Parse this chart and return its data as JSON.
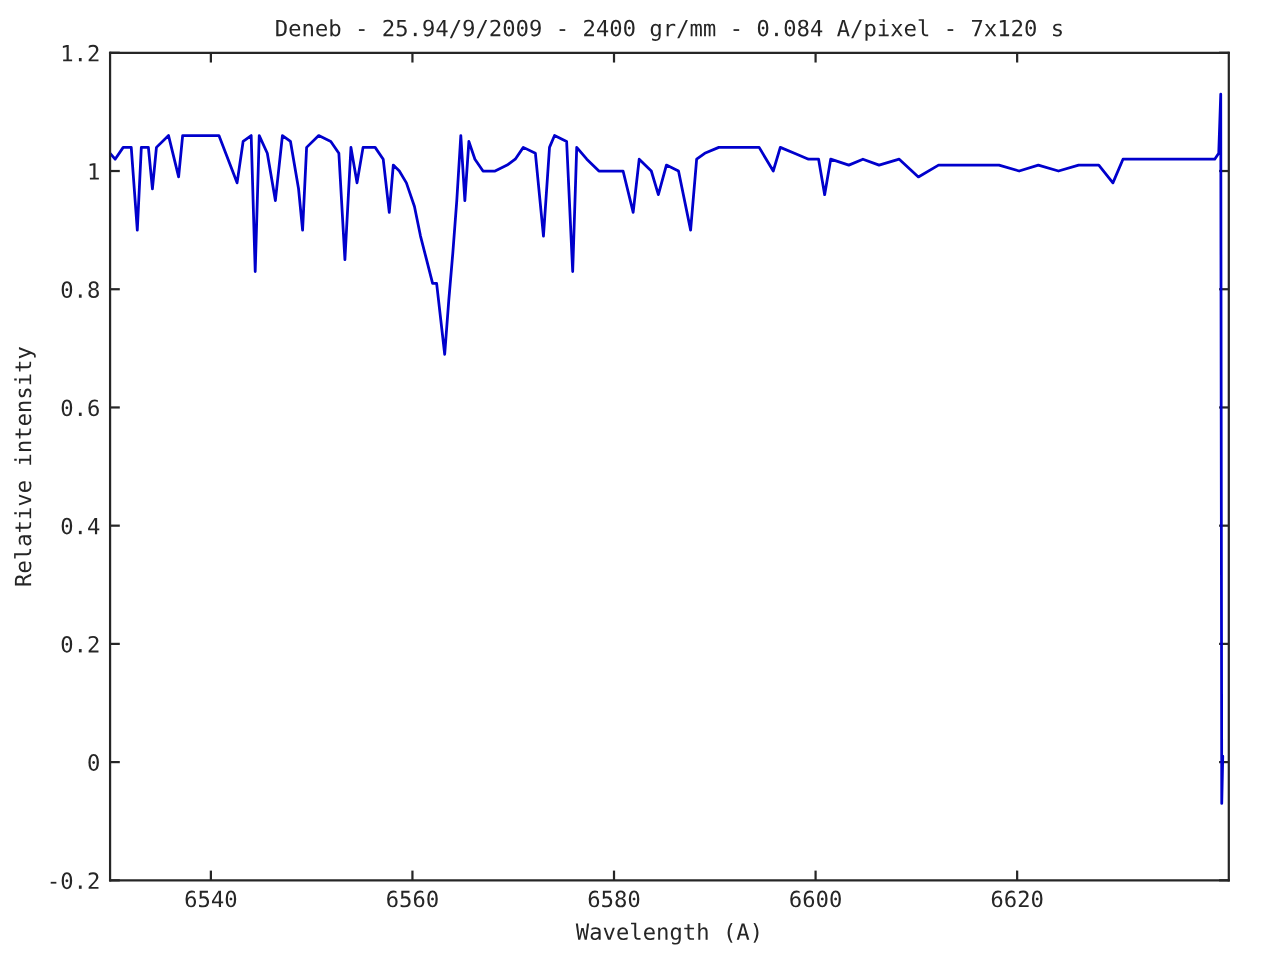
{
  "chart_data": {
    "type": "line",
    "title": "Deneb - 25.94/9/2009 - 2400 gr/mm - 0.084 A/pixel - 7x120 s",
    "xlabel": "Wavelength (A)",
    "ylabel": "Relative intensity",
    "x": [
      6530.0,
      6530.5,
      6531.3,
      6532.1,
      6532.7,
      6533.1,
      6533.8,
      6534.2,
      6534.6,
      6535.8,
      6536.8,
      6537.2,
      6538.8,
      6540.8,
      6542.6,
      6543.2,
      6544.0,
      6544.4,
      6544.8,
      6545.6,
      6546.4,
      6547.1,
      6547.9,
      6548.7,
      6549.1,
      6549.5,
      6550.7,
      6551.9,
      6552.7,
      6553.3,
      6553.9,
      6554.5,
      6555.1,
      6556.3,
      6557.1,
      6557.7,
      6558.1,
      6558.7,
      6559.4,
      6560.2,
      6560.8,
      6561.4,
      6562.0,
      6562.4,
      6562.8,
      6563.2,
      6563.6,
      6564.0,
      6564.4,
      6564.8,
      6565.2,
      6565.6,
      6566.2,
      6567.0,
      6568.2,
      6569.4,
      6570.2,
      6571.0,
      6572.2,
      6573.0,
      6573.6,
      6574.1,
      6575.3,
      6575.9,
      6576.3,
      6577.3,
      6578.5,
      6579.7,
      6580.9,
      6581.9,
      6582.5,
      6583.7,
      6584.4,
      6585.2,
      6586.4,
      6587.6,
      6588.2,
      6589.0,
      6590.4,
      6592.4,
      6594.4,
      6595.8,
      6596.5,
      6597.9,
      6599.3,
      6600.3,
      6600.9,
      6601.5,
      6603.3,
      6604.7,
      6606.3,
      6608.3,
      6610.2,
      6612.2,
      6614.2,
      6616.2,
      6618.2,
      6620.2,
      6622.1,
      6624.1,
      6626.1,
      6628.1,
      6629.5,
      6630.5,
      6632.1,
      6634.0,
      6636.0,
      6638.0,
      6639.6,
      6640.0,
      6640.2,
      6640.3,
      6640.4
    ],
    "series": [
      {
        "color": "#0000cc",
        "values": [
          1.03,
          1.02,
          1.04,
          1.04,
          0.9,
          1.04,
          1.04,
          0.97,
          1.04,
          1.06,
          0.99,
          1.06,
          1.06,
          1.06,
          0.98,
          1.05,
          1.06,
          0.83,
          1.06,
          1.03,
          0.95,
          1.06,
          1.05,
          0.97,
          0.9,
          1.04,
          1.06,
          1.05,
          1.03,
          0.85,
          1.04,
          0.98,
          1.04,
          1.04,
          1.02,
          0.93,
          1.01,
          1.0,
          0.98,
          0.94,
          0.89,
          0.85,
          0.81,
          0.81,
          0.75,
          0.69,
          0.78,
          0.86,
          0.95,
          1.06,
          0.95,
          1.05,
          1.02,
          1.0,
          1.0,
          1.01,
          1.02,
          1.04,
          1.03,
          0.89,
          1.04,
          1.06,
          1.05,
          0.83,
          1.04,
          1.02,
          1.0,
          1.0,
          1.0,
          0.93,
          1.02,
          1.0,
          0.96,
          1.01,
          1.0,
          0.9,
          1.02,
          1.03,
          1.04,
          1.04,
          1.04,
          1.0,
          1.04,
          1.03,
          1.02,
          1.02,
          0.96,
          1.02,
          1.01,
          1.02,
          1.01,
          1.02,
          0.99,
          1.01,
          1.01,
          1.01,
          1.01,
          1.0,
          1.01,
          1.0,
          1.01,
          1.01,
          0.98,
          1.02,
          1.02,
          1.02,
          1.02,
          1.02,
          1.02,
          1.03,
          1.13,
          -0.07,
          0.01
        ]
      }
    ],
    "xlim": [
      6530,
      6641
    ],
    "ylim": [
      -0.2,
      1.2
    ],
    "xticks": [
      6540,
      6560,
      6580,
      6600,
      6620
    ],
    "yticks": [
      {
        "value": -0.2,
        "label": "-0.2"
      },
      {
        "value": 0,
        "label": "0"
      },
      0.2,
      0.4,
      0.6,
      0.8,
      {
        "value": 1,
        "label": "1"
      },
      1.2
    ],
    "grid": false,
    "legend": false,
    "marker": "none",
    "line_style": "solid"
  }
}
